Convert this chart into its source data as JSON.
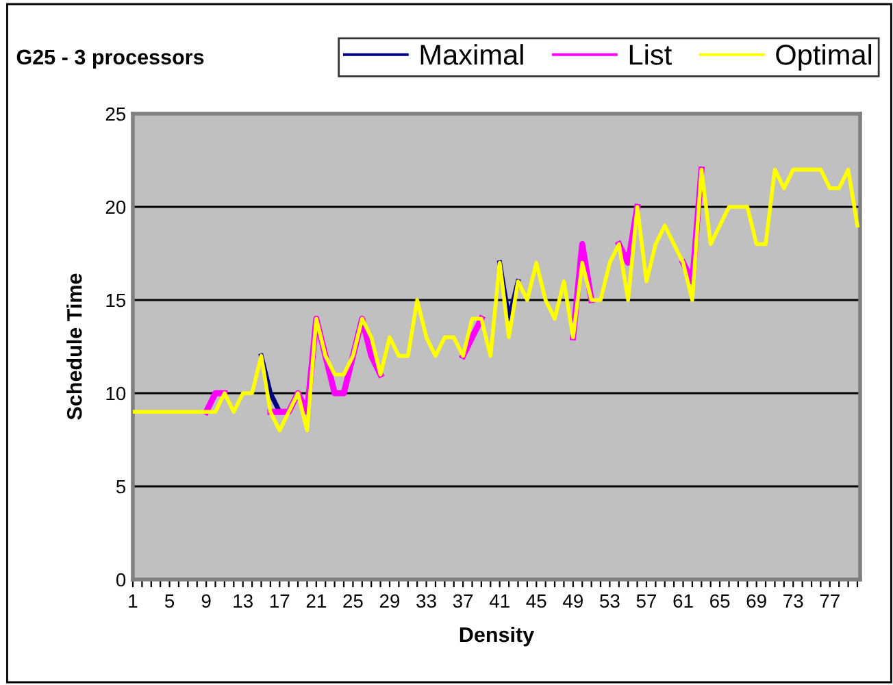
{
  "chart_data": {
    "type": "line",
    "title": "G25 - 3 processors",
    "xlabel": "Density",
    "ylabel": "Schedule Time",
    "categories": [
      "1",
      null,
      null,
      null,
      "5",
      null,
      null,
      null,
      "9",
      null,
      null,
      null,
      "13",
      null,
      null,
      null,
      "17",
      null,
      null,
      null,
      "21",
      null,
      null,
      null,
      "25",
      null,
      null,
      null,
      "29",
      null,
      null,
      null,
      "33",
      null,
      null,
      null,
      "37",
      null,
      null,
      null,
      "41",
      null,
      null,
      null,
      "45",
      null,
      null,
      null,
      "49",
      null,
      null,
      null,
      "53",
      null,
      null,
      null,
      "57",
      null,
      null,
      null,
      "61",
      null,
      null,
      null,
      "65",
      null,
      null,
      null,
      "69",
      null,
      null,
      null,
      "73",
      null,
      null,
      null,
      "77",
      null,
      null,
      null
    ],
    "series": [
      {
        "name": "Maximal",
        "color": "#000080",
        "values": [
          null,
          null,
          null,
          null,
          null,
          null,
          null,
          null,
          null,
          null,
          null,
          null,
          null,
          null,
          12,
          10,
          9,
          null,
          null,
          null,
          null,
          null,
          null,
          null,
          null,
          null,
          null,
          null,
          null,
          null,
          null,
          null,
          null,
          null,
          null,
          null,
          null,
          null,
          null,
          null,
          17,
          14,
          16,
          null,
          null,
          null,
          null,
          null,
          null,
          null,
          null,
          null,
          null,
          null,
          null,
          null,
          null,
          null,
          null,
          null,
          null,
          null,
          null,
          null,
          null,
          null,
          null,
          null,
          null,
          null,
          null,
          null,
          null,
          null,
          null,
          null,
          null,
          null,
          null,
          null
        ]
      },
      {
        "name": "List",
        "color": "#ff00ff",
        "values": [
          null,
          null,
          null,
          null,
          null,
          null,
          null,
          null,
          9,
          10,
          10,
          null,
          null,
          null,
          null,
          9,
          9,
          9,
          10,
          9,
          14,
          12,
          10,
          10,
          12,
          14,
          12,
          11,
          null,
          null,
          null,
          null,
          null,
          null,
          null,
          null,
          12,
          13,
          14,
          null,
          null,
          null,
          null,
          null,
          null,
          null,
          null,
          null,
          13,
          18,
          15,
          null,
          null,
          18,
          17,
          20,
          null,
          null,
          null,
          null,
          17,
          16,
          22,
          null,
          null,
          null,
          null,
          null,
          null,
          null,
          null,
          null,
          null,
          null,
          null,
          null,
          null,
          null,
          null,
          null
        ]
      },
      {
        "name": "Optimal",
        "color": "#ffff00",
        "values": [
          9,
          9,
          9,
          9,
          9,
          9,
          9,
          9,
          9,
          9,
          10,
          9,
          10,
          10,
          12,
          9,
          8,
          9,
          10,
          8,
          14,
          12,
          11,
          11,
          12,
          14,
          13,
          11,
          13,
          12,
          12,
          15,
          13,
          12,
          13,
          13,
          12,
          14,
          14,
          12,
          17,
          13,
          16,
          15,
          17,
          15,
          14,
          16,
          13,
          17,
          15,
          15,
          17,
          18,
          15,
          20,
          16,
          18,
          19,
          18,
          17,
          15,
          22,
          18,
          19,
          20,
          20,
          20,
          18,
          18,
          22,
          21,
          22,
          22,
          22,
          22,
          21,
          21,
          22,
          19
        ]
      }
    ],
    "ylim": [
      0,
      25
    ],
    "yticks": [
      0,
      5,
      10,
      15,
      20,
      25
    ],
    "grid": "y",
    "legend": "top right",
    "line_style": "solid",
    "marker": "none"
  }
}
